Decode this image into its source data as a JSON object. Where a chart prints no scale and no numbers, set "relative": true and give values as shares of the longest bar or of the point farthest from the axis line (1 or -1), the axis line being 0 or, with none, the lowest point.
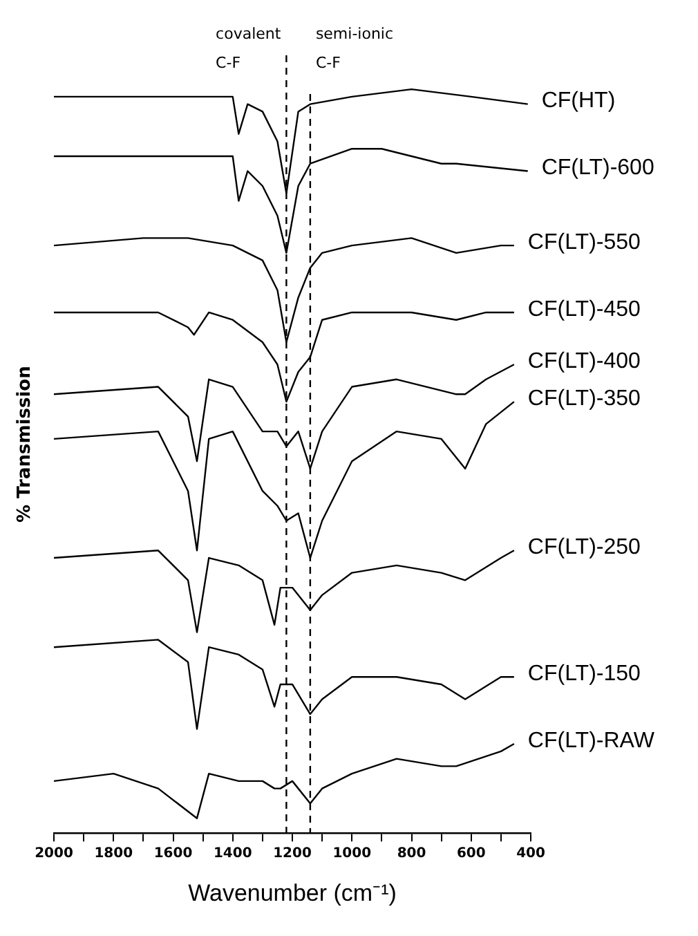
{
  "chart_data": {
    "type": "line",
    "relative": true,
    "xlabel": "Wavenumber (cm⁻¹)",
    "ylabel": "% Transmission",
    "xlim": [
      2000,
      400
    ],
    "xticks": [
      2000,
      1800,
      1600,
      1400,
      1200,
      1000,
      800,
      600,
      400
    ],
    "grid": false,
    "legend": false,
    "marker": "none",
    "line_style": "solid",
    "ref_lines": [
      {
        "axis": "x",
        "value": 1220,
        "label": "covalent C-F",
        "line_style": "dashed",
        "color": "#000000"
      },
      {
        "axis": "x",
        "value": 1140,
        "label": "semi-ionic C-F",
        "line_style": "dashed",
        "color": "#000000"
      }
    ],
    "series": [
      {
        "name": "CF(HT)",
        "color": "#000000",
        "x": [
          2000,
          1700,
          1500,
          1400,
          1380,
          1350,
          1300,
          1250,
          1220,
          1180,
          1140,
          1000,
          800,
          600,
          410
        ],
        "values": [
          0.99,
          0.99,
          0.99,
          0.99,
          0.94,
          0.98,
          0.97,
          0.93,
          0.86,
          0.97,
          0.98,
          0.99,
          1.0,
          0.99,
          0.98
        ]
      },
      {
        "name": "CF(LT)-600",
        "color": "#000000",
        "x": [
          2000,
          1700,
          1500,
          1400,
          1380,
          1350,
          1300,
          1250,
          1220,
          1180,
          1140,
          1000,
          900,
          700,
          650,
          410
        ],
        "values": [
          0.91,
          0.91,
          0.91,
          0.91,
          0.85,
          0.89,
          0.87,
          0.83,
          0.78,
          0.87,
          0.9,
          0.92,
          0.92,
          0.9,
          0.9,
          0.89
        ]
      },
      {
        "name": "CF(LT)-550",
        "color": "#000000",
        "x": [
          2000,
          1700,
          1550,
          1400,
          1300,
          1250,
          1220,
          1180,
          1140,
          1100,
          1000,
          800,
          650,
          500,
          456
        ],
        "values": [
          0.79,
          0.8,
          0.8,
          0.79,
          0.77,
          0.73,
          0.66,
          0.72,
          0.76,
          0.78,
          0.79,
          0.8,
          0.78,
          0.79,
          0.79
        ]
      },
      {
        "name": "CF(LT)-450",
        "color": "#000000",
        "x": [
          2000,
          1650,
          1550,
          1530,
          1480,
          1400,
          1300,
          1250,
          1220,
          1180,
          1140,
          1100,
          1000,
          800,
          650,
          550,
          456
        ],
        "values": [
          0.7,
          0.7,
          0.68,
          0.67,
          0.7,
          0.69,
          0.66,
          0.63,
          0.58,
          0.62,
          0.64,
          0.69,
          0.7,
          0.7,
          0.69,
          0.7,
          0.7
        ]
      },
      {
        "name": "CF(LT)-400",
        "color": "#000000",
        "x": [
          2000,
          1650,
          1550,
          1520,
          1480,
          1400,
          1300,
          1250,
          1220,
          1180,
          1140,
          1100,
          1000,
          850,
          750,
          650,
          620,
          550,
          456
        ],
        "values": [
          0.59,
          0.6,
          0.56,
          0.5,
          0.61,
          0.6,
          0.54,
          0.54,
          0.52,
          0.54,
          0.49,
          0.54,
          0.6,
          0.61,
          0.6,
          0.59,
          0.59,
          0.61,
          0.63
        ]
      },
      {
        "name": "CF(LT)-350",
        "color": "#000000",
        "x": [
          2000,
          1650,
          1550,
          1520,
          1480,
          1400,
          1300,
          1250,
          1220,
          1180,
          1140,
          1100,
          1000,
          850,
          700,
          620,
          550,
          456
        ],
        "values": [
          0.53,
          0.54,
          0.46,
          0.38,
          0.53,
          0.54,
          0.46,
          0.44,
          0.42,
          0.43,
          0.37,
          0.42,
          0.5,
          0.54,
          0.53,
          0.49,
          0.55,
          0.58
        ]
      },
      {
        "name": "CF(LT)-250",
        "color": "#000000",
        "x": [
          2000,
          1650,
          1550,
          1520,
          1480,
          1380,
          1300,
          1260,
          1240,
          1200,
          1140,
          1100,
          1000,
          850,
          700,
          620,
          500,
          456
        ],
        "values": [
          0.37,
          0.38,
          0.34,
          0.27,
          0.37,
          0.36,
          0.34,
          0.28,
          0.33,
          0.33,
          0.3,
          0.32,
          0.35,
          0.36,
          0.35,
          0.34,
          0.37,
          0.38
        ]
      },
      {
        "name": "CF(LT)-150",
        "color": "#000000",
        "x": [
          2000,
          1650,
          1550,
          1520,
          1480,
          1380,
          1300,
          1260,
          1240,
          1200,
          1140,
          1100,
          1000,
          850,
          700,
          620,
          500,
          456
        ],
        "values": [
          0.25,
          0.26,
          0.23,
          0.14,
          0.25,
          0.24,
          0.22,
          0.17,
          0.2,
          0.2,
          0.16,
          0.18,
          0.21,
          0.21,
          0.2,
          0.18,
          0.21,
          0.21
        ]
      },
      {
        "name": "CF(LT)-RAW",
        "color": "#000000",
        "x": [
          2000,
          1800,
          1650,
          1520,
          1480,
          1380,
          1300,
          1260,
          1240,
          1200,
          1140,
          1100,
          1000,
          850,
          700,
          650,
          500,
          456
        ],
        "values": [
          0.07,
          0.08,
          0.06,
          0.02,
          0.08,
          0.07,
          0.07,
          0.06,
          0.06,
          0.07,
          0.04,
          0.06,
          0.08,
          0.1,
          0.09,
          0.09,
          0.11,
          0.12
        ]
      }
    ]
  }
}
